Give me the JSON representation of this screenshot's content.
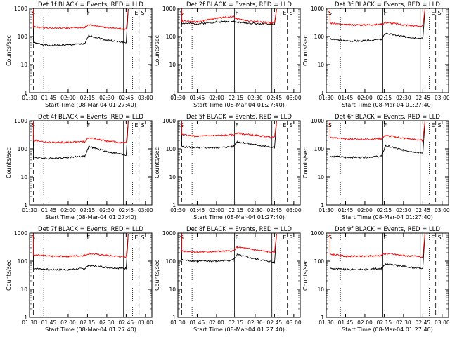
{
  "chart_data": [
    {
      "type": "line",
      "title": "Det 1f BLACK = Events, RED = LLD",
      "xlabel": "Start Time (08-Mar-04 01:27:40)",
      "ylabel": "Counts/sec",
      "ylog": true,
      "ylim": [
        1,
        1000
      ],
      "yticks": [
        "1",
        "10",
        "100",
        "1000"
      ],
      "xticks": [
        "01:30",
        "01:45",
        "02:00",
        "02:15",
        "02:30",
        "02:45",
        "03:00"
      ],
      "markers": [
        "S",
        "F",
        "E",
        "S"
      ],
      "series": [
        {
          "color": "#000000",
          "values": [
            {
              "t": "01:33",
              "v": 60
            },
            {
              "t": "01:45",
              "v": 48
            },
            {
              "t": "02:00",
              "v": 50
            },
            {
              "t": "02:13",
              "v": 55
            },
            {
              "t": "02:16",
              "v": 110
            },
            {
              "t": "02:30",
              "v": 75
            },
            {
              "t": "02:45",
              "v": 60
            }
          ]
        },
        {
          "color": "#ff0000",
          "values": [
            {
              "t": "01:33",
              "v": 220
            },
            {
              "t": "01:45",
              "v": 200
            },
            {
              "t": "02:00",
              "v": 200
            },
            {
              "t": "02:13",
              "v": 210
            },
            {
              "t": "02:16",
              "v": 260
            },
            {
              "t": "02:30",
              "v": 210
            },
            {
              "t": "02:45",
              "v": 180
            }
          ]
        }
      ]
    },
    {
      "type": "line",
      "title": "Det 2f BLACK = Events, RED = LLD",
      "xlabel": "Start Time (08-Mar-04 01:27:40)",
      "ylabel": "Counts/sec",
      "ylog": true,
      "ylim": [
        1,
        1000
      ],
      "yticks": [
        "1",
        "10",
        "100",
        "1000"
      ],
      "xticks": [
        "01:30",
        "01:45",
        "02:00",
        "02:15",
        "02:30",
        "02:45",
        "03:00"
      ],
      "markers": [
        "S",
        "F",
        "E",
        "S"
      ],
      "series": [
        {
          "color": "#000000",
          "values": [
            {
              "t": "01:33",
              "v": 300
            },
            {
              "t": "01:45",
              "v": 280
            },
            {
              "t": "02:00",
              "v": 330
            },
            {
              "t": "02:13",
              "v": 350
            },
            {
              "t": "02:16",
              "v": 320
            },
            {
              "t": "02:30",
              "v": 290
            },
            {
              "t": "02:45",
              "v": 270
            }
          ]
        },
        {
          "color": "#ff0000",
          "values": [
            {
              "t": "01:33",
              "v": 350
            },
            {
              "t": "01:45",
              "v": 330
            },
            {
              "t": "02:00",
              "v": 450
            },
            {
              "t": "02:13",
              "v": 520
            },
            {
              "t": "02:16",
              "v": 420
            },
            {
              "t": "02:30",
              "v": 340
            },
            {
              "t": "02:45",
              "v": 300
            }
          ]
        }
      ]
    },
    {
      "type": "line",
      "title": "Det 3f BLACK = Events, RED = LLD",
      "xlabel": "Start Time (08-Mar-04 01:27:40)",
      "ylabel": "Counts/sec",
      "ylog": true,
      "ylim": [
        1,
        1000
      ],
      "yticks": [
        "1",
        "10",
        "100",
        "1000"
      ],
      "xticks": [
        "01:30",
        "01:45",
        "02:00",
        "02:15",
        "02:30",
        "02:45",
        "03:00"
      ],
      "markers": [
        "S",
        "F",
        "E",
        "S"
      ],
      "series": [
        {
          "color": "#000000",
          "values": [
            {
              "t": "01:33",
              "v": 80
            },
            {
              "t": "01:45",
              "v": 70
            },
            {
              "t": "02:00",
              "v": 70
            },
            {
              "t": "02:13",
              "v": 80
            },
            {
              "t": "02:16",
              "v": 130
            },
            {
              "t": "02:30",
              "v": 100
            },
            {
              "t": "02:45",
              "v": 85
            }
          ]
        },
        {
          "color": "#ff0000",
          "values": [
            {
              "t": "01:33",
              "v": 300
            },
            {
              "t": "01:45",
              "v": 260
            },
            {
              "t": "02:00",
              "v": 260
            },
            {
              "t": "02:13",
              "v": 270
            },
            {
              "t": "02:16",
              "v": 320
            },
            {
              "t": "02:30",
              "v": 260
            },
            {
              "t": "02:45",
              "v": 230
            }
          ]
        }
      ]
    },
    {
      "type": "line",
      "title": "Det 4f BLACK = Events, RED = LLD",
      "xlabel": "Start Time (08-Mar-04 01:27:40)",
      "ylabel": "Counts/sec",
      "ylog": true,
      "ylim": [
        1,
        1000
      ],
      "yticks": [
        "1",
        "10",
        "100",
        "1000"
      ],
      "xticks": [
        "01:30",
        "01:45",
        "02:00",
        "02:15",
        "02:30",
        "02:45",
        "03:00"
      ],
      "markers": [
        "S",
        "F",
        "E",
        "S"
      ],
      "series": [
        {
          "color": "#000000",
          "values": [
            {
              "t": "01:33",
              "v": 50
            },
            {
              "t": "01:45",
              "v": 45
            },
            {
              "t": "02:00",
              "v": 50
            },
            {
              "t": "02:13",
              "v": 55
            },
            {
              "t": "02:16",
              "v": 120
            },
            {
              "t": "02:30",
              "v": 80
            },
            {
              "t": "02:45",
              "v": 60
            }
          ]
        },
        {
          "color": "#ff0000",
          "values": [
            {
              "t": "01:33",
              "v": 200
            },
            {
              "t": "01:45",
              "v": 170
            },
            {
              "t": "02:00",
              "v": 170
            },
            {
              "t": "02:13",
              "v": 180
            },
            {
              "t": "02:16",
              "v": 250
            },
            {
              "t": "02:30",
              "v": 190
            },
            {
              "t": "02:45",
              "v": 160
            }
          ]
        }
      ]
    },
    {
      "type": "line",
      "title": "Det 5f BLACK = Events, RED = LLD",
      "xlabel": "Start Time (08-Mar-04 01:27:40)",
      "ylabel": "Counts/sec",
      "ylog": true,
      "ylim": [
        1,
        1000
      ],
      "yticks": [
        "1",
        "10",
        "100",
        "1000"
      ],
      "xticks": [
        "01:30",
        "01:45",
        "02:00",
        "02:15",
        "02:30",
        "02:45",
        "03:00"
      ],
      "markers": [
        "S",
        "F",
        "E",
        "S"
      ],
      "series": [
        {
          "color": "#000000",
          "values": [
            {
              "t": "01:33",
              "v": 120
            },
            {
              "t": "01:45",
              "v": 110
            },
            {
              "t": "02:00",
              "v": 110
            },
            {
              "t": "02:13",
              "v": 120
            },
            {
              "t": "02:16",
              "v": 180
            },
            {
              "t": "02:30",
              "v": 140
            },
            {
              "t": "02:45",
              "v": 110
            }
          ]
        },
        {
          "color": "#ff0000",
          "values": [
            {
              "t": "01:33",
              "v": 320
            },
            {
              "t": "01:45",
              "v": 280
            },
            {
              "t": "02:00",
              "v": 300
            },
            {
              "t": "02:13",
              "v": 310
            },
            {
              "t": "02:16",
              "v": 360
            },
            {
              "t": "02:30",
              "v": 300
            },
            {
              "t": "02:45",
              "v": 260
            }
          ]
        }
      ]
    },
    {
      "type": "line",
      "title": "Det 6f BLACK = Events, RED = LLD",
      "xlabel": "Start Time (08-Mar-04 01:27:40)",
      "ylabel": "Counts/sec",
      "ylog": true,
      "ylim": [
        1,
        1000
      ],
      "yticks": [
        "1",
        "10",
        "100",
        "1000"
      ],
      "xticks": [
        "01:30",
        "01:45",
        "02:00",
        "02:15",
        "02:30",
        "02:45",
        "03:00"
      ],
      "markers": [
        "S",
        "F",
        "E",
        "S"
      ],
      "series": [
        {
          "color": "#000000",
          "values": [
            {
              "t": "01:33",
              "v": 55
            },
            {
              "t": "01:45",
              "v": 50
            },
            {
              "t": "02:00",
              "v": 50
            },
            {
              "t": "02:13",
              "v": 55
            },
            {
              "t": "02:16",
              "v": 130
            },
            {
              "t": "02:30",
              "v": 90
            },
            {
              "t": "02:45",
              "v": 70
            }
          ]
        },
        {
          "color": "#ff0000",
          "values": [
            {
              "t": "01:33",
              "v": 260
            },
            {
              "t": "01:45",
              "v": 220
            },
            {
              "t": "02:00",
              "v": 220
            },
            {
              "t": "02:13",
              "v": 230
            },
            {
              "t": "02:16",
              "v": 300
            },
            {
              "t": "02:30",
              "v": 240
            },
            {
              "t": "02:45",
              "v": 200
            }
          ]
        }
      ]
    },
    {
      "type": "line",
      "title": "Det 7f BLACK = Events, RED = LLD",
      "xlabel": "Start Time (08-Mar-04 01:27:40)",
      "ylabel": "Counts/sec",
      "ylog": true,
      "ylim": [
        1,
        1000
      ],
      "yticks": [
        "1",
        "10",
        "100",
        "1000"
      ],
      "xticks": [
        "01:30",
        "01:45",
        "02:00",
        "02:15",
        "02:30",
        "02:45",
        "03:00"
      ],
      "markers": [
        "S",
        "F",
        "E",
        "S"
      ],
      "series": [
        {
          "color": "#000000",
          "values": [
            {
              "t": "01:33",
              "v": 55
            },
            {
              "t": "01:45",
              "v": 50
            },
            {
              "t": "02:00",
              "v": 50
            },
            {
              "t": "02:13",
              "v": 55
            },
            {
              "t": "02:16",
              "v": 70
            },
            {
              "t": "02:30",
              "v": 60
            },
            {
              "t": "02:45",
              "v": 55
            }
          ]
        },
        {
          "color": "#ff0000",
          "values": [
            {
              "t": "01:33",
              "v": 170
            },
            {
              "t": "01:45",
              "v": 150
            },
            {
              "t": "02:00",
              "v": 150
            },
            {
              "t": "02:13",
              "v": 160
            },
            {
              "t": "02:16",
              "v": 190
            },
            {
              "t": "02:30",
              "v": 160
            },
            {
              "t": "02:45",
              "v": 140
            }
          ]
        }
      ]
    },
    {
      "type": "line",
      "title": "Det 8f BLACK = Events, RED = LLD",
      "xlabel": "Start Time (08-Mar-04 01:27:40)",
      "ylabel": "Counts/sec",
      "ylog": true,
      "ylim": [
        1,
        1000
      ],
      "yticks": [
        "1",
        "10",
        "100",
        "1000"
      ],
      "xticks": [
        "01:30",
        "01:45",
        "02:00",
        "02:15",
        "02:30",
        "02:45",
        "03:00"
      ],
      "markers": [
        "S",
        "F",
        "E",
        "S"
      ],
      "series": [
        {
          "color": "#000000",
          "values": [
            {
              "t": "01:33",
              "v": 110
            },
            {
              "t": "01:45",
              "v": 100
            },
            {
              "t": "02:00",
              "v": 100
            },
            {
              "t": "02:13",
              "v": 110
            },
            {
              "t": "02:16",
              "v": 170
            },
            {
              "t": "02:30",
              "v": 120
            },
            {
              "t": "02:45",
              "v": 90
            }
          ]
        },
        {
          "color": "#ff0000",
          "values": [
            {
              "t": "01:33",
              "v": 230
            },
            {
              "t": "01:45",
              "v": 210
            },
            {
              "t": "02:00",
              "v": 220
            },
            {
              "t": "02:13",
              "v": 230
            },
            {
              "t": "02:16",
              "v": 320
            },
            {
              "t": "02:30",
              "v": 250
            },
            {
              "t": "02:45",
              "v": 200
            }
          ]
        }
      ]
    },
    {
      "type": "line",
      "title": "Det 9f BLACK = Events, RED = LLD",
      "xlabel": "Start Time (08-Mar-04 01:27:40)",
      "ylabel": "Counts/sec",
      "ylog": true,
      "ylim": [
        1,
        1000
      ],
      "yticks": [
        "1",
        "10",
        "100",
        "1000"
      ],
      "xticks": [
        "01:30",
        "01:45",
        "02:00",
        "02:15",
        "02:30",
        "02:45",
        "03:00"
      ],
      "markers": [
        "S",
        "F",
        "E",
        "S"
      ],
      "series": [
        {
          "color": "#000000",
          "values": [
            {
              "t": "01:33",
              "v": 55
            },
            {
              "t": "01:45",
              "v": 50
            },
            {
              "t": "02:00",
              "v": 50
            },
            {
              "t": "02:13",
              "v": 55
            },
            {
              "t": "02:16",
              "v": 80
            },
            {
              "t": "02:30",
              "v": 65
            },
            {
              "t": "02:45",
              "v": 55
            }
          ]
        },
        {
          "color": "#ff0000",
          "values": [
            {
              "t": "01:33",
              "v": 180
            },
            {
              "t": "01:45",
              "v": 150
            },
            {
              "t": "02:00",
              "v": 150
            },
            {
              "t": "02:13",
              "v": 160
            },
            {
              "t": "02:16",
              "v": 190
            },
            {
              "t": "02:30",
              "v": 160
            },
            {
              "t": "02:45",
              "v": 140
            }
          ]
        }
      ]
    }
  ]
}
